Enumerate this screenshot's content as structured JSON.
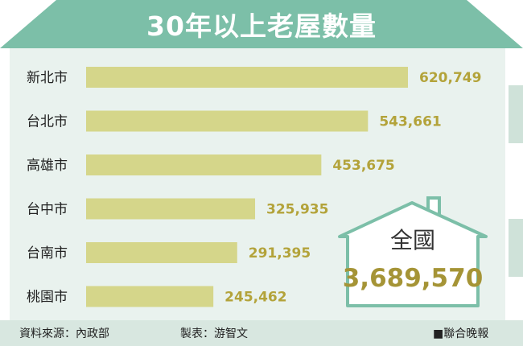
{
  "header": {
    "title": "30年以上老屋數量"
  },
  "colors": {
    "roof": "#7cbfa8",
    "house_body": "#e9f2ee",
    "bar": "#d5d68a",
    "value_text": "#b3a33a",
    "total_value": "#a59436",
    "footer_bg": "#d8e7e0"
  },
  "total": {
    "label": "全國",
    "value": "3,689,570"
  },
  "footer": {
    "source": "資料來源：內政部",
    "maker": "製表：游智文",
    "publisher": "■聯合晚報"
  },
  "chart_data": {
    "type": "bar",
    "orientation": "horizontal",
    "title": "30年以上老屋數量",
    "categories": [
      "新北市",
      "台北市",
      "高雄市",
      "台中市",
      "台南市",
      "桃園市"
    ],
    "values": [
      620749,
      543661,
      453675,
      325935,
      291395,
      245462
    ],
    "value_labels": [
      "620,749",
      "543,661",
      "453,675",
      "325,935",
      "291,395",
      "245,462"
    ],
    "xlim": [
      0,
      620749
    ],
    "grid": false,
    "legend": "none"
  }
}
